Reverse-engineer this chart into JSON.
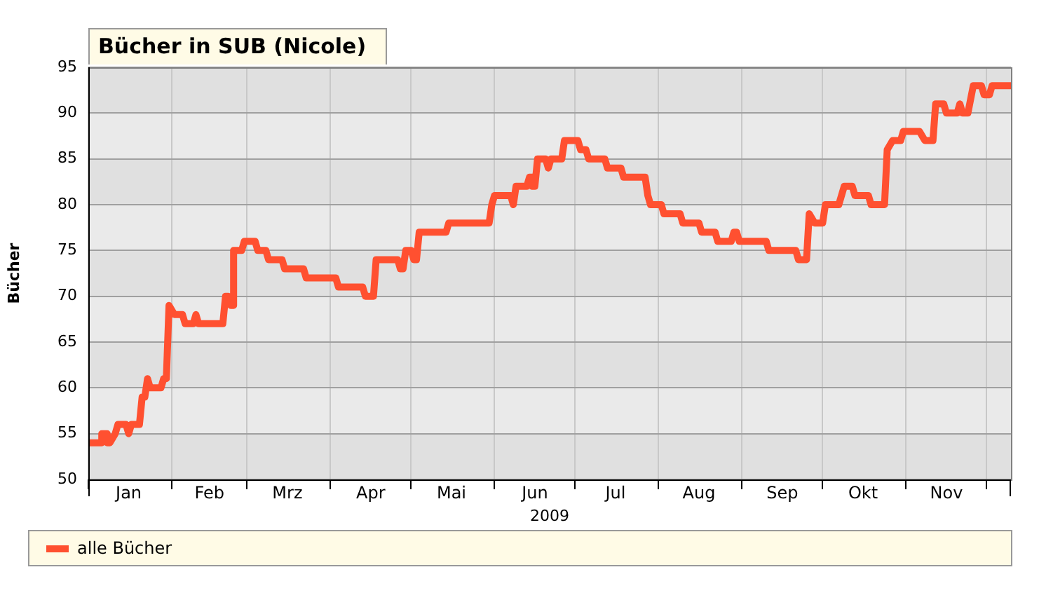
{
  "chart_data": {
    "type": "line",
    "title": "Bücher in SUB (Nicole)",
    "xlabel": "2009",
    "ylabel": "Bücher",
    "xlim": [
      "2009-01-01",
      "2009-12-10"
    ],
    "xticks": [
      {
        "value": "2009-01-01",
        "label": null
      },
      {
        "value": "2009-01-16",
        "label": "Jan"
      },
      {
        "value": "2009-02-01",
        "label": null
      },
      {
        "value": "2009-02-15",
        "label": "Feb"
      },
      {
        "value": "2009-03-01",
        "label": null
      },
      {
        "value": "2009-03-16",
        "label": "Mrz"
      },
      {
        "value": "2009-04-01",
        "label": null
      },
      {
        "value": "2009-04-16",
        "label": "Apr"
      },
      {
        "value": "2009-05-01",
        "label": null
      },
      {
        "value": "2009-05-16",
        "label": "Mai"
      },
      {
        "value": "2009-06-01",
        "label": null
      },
      {
        "value": "2009-06-16",
        "label": "Jun"
      },
      {
        "value": "2009-07-01",
        "label": null
      },
      {
        "value": "2009-07-16",
        "label": "Jul"
      },
      {
        "value": "2009-08-01",
        "label": null
      },
      {
        "value": "2009-08-16",
        "label": "Aug"
      },
      {
        "value": "2009-09-01",
        "label": null
      },
      {
        "value": "2009-09-16",
        "label": "Sep"
      },
      {
        "value": "2009-10-01",
        "label": null
      },
      {
        "value": "2009-10-16",
        "label": "Okt"
      },
      {
        "value": "2009-11-01",
        "label": null
      },
      {
        "value": "2009-11-16",
        "label": "Nov"
      },
      {
        "value": "2009-12-01",
        "label": null
      }
    ],
    "ylim": [
      50,
      95
    ],
    "yticks": [
      50,
      55,
      60,
      65,
      70,
      75,
      80,
      85,
      90,
      95
    ],
    "grid": true,
    "legend": "bottom",
    "marker": "none",
    "line_style": "solid",
    "series": [
      {
        "name": "alle Bücher",
        "color": "#ff5030",
        "x": [
          "2009-01-01",
          "2009-01-06",
          "2009-01-06",
          "2009-01-08",
          "2009-01-08",
          "2009-01-09",
          "2009-01-11",
          "2009-01-12",
          "2009-01-15",
          "2009-01-16",
          "2009-01-17",
          "2009-01-20",
          "2009-01-21",
          "2009-01-22",
          "2009-01-23",
          "2009-01-24",
          "2009-01-28",
          "2009-01-29",
          "2009-01-30",
          "2009-01-31",
          "2009-02-02",
          "2009-02-05",
          "2009-02-06",
          "2009-02-09",
          "2009-02-10",
          "2009-02-11",
          "2009-02-20",
          "2009-02-21",
          "2009-02-22",
          "2009-02-23",
          "2009-02-24",
          "2009-02-24",
          "2009-02-27",
          "2009-02-28",
          "2009-03-04",
          "2009-03-05",
          "2009-03-08",
          "2009-03-09",
          "2009-03-14",
          "2009-03-15",
          "2009-03-22",
          "2009-03-23",
          "2009-04-03",
          "2009-04-04",
          "2009-04-13",
          "2009-04-14",
          "2009-04-17",
          "2009-04-18",
          "2009-04-26",
          "2009-04-27",
          "2009-04-28",
          "2009-04-29",
          "2009-05-01",
          "2009-05-02",
          "2009-05-03",
          "2009-05-04",
          "2009-05-14",
          "2009-05-15",
          "2009-05-30",
          "2009-05-31",
          "2009-06-01",
          "2009-06-07",
          "2009-06-08",
          "2009-06-09",
          "2009-06-13",
          "2009-06-14",
          "2009-06-15",
          "2009-06-15",
          "2009-06-16",
          "2009-06-17",
          "2009-06-20",
          "2009-06-21",
          "2009-06-22",
          "2009-06-26",
          "2009-06-27",
          "2009-07-02",
          "2009-07-03",
          "2009-07-05",
          "2009-07-06",
          "2009-07-12",
          "2009-07-13",
          "2009-07-18",
          "2009-07-19",
          "2009-07-27",
          "2009-07-28",
          "2009-07-29",
          "2009-08-02",
          "2009-08-03",
          "2009-08-09",
          "2009-08-10",
          "2009-08-16",
          "2009-08-17",
          "2009-08-22",
          "2009-08-23",
          "2009-08-28",
          "2009-08-29",
          "2009-08-30",
          "2009-08-31",
          "2009-09-10",
          "2009-09-11",
          "2009-09-21",
          "2009-09-22",
          "2009-09-25",
          "2009-09-26",
          "2009-09-28",
          "2009-10-01",
          "2009-10-02",
          "2009-10-07",
          "2009-10-09",
          "2009-10-12",
          "2009-10-13",
          "2009-10-18",
          "2009-10-19",
          "2009-10-24",
          "2009-10-25",
          "2009-10-27",
          "2009-10-30",
          "2009-10-31",
          "2009-11-06",
          "2009-11-08",
          "2009-11-11",
          "2009-11-12",
          "2009-11-15",
          "2009-11-16",
          "2009-11-20",
          "2009-11-21",
          "2009-11-22",
          "2009-11-24",
          "2009-11-26",
          "2009-11-29",
          "2009-11-30",
          "2009-12-02",
          "2009-12-03",
          "2009-12-10"
        ],
        "values": [
          54,
          54,
          55,
          55,
          54,
          54,
          55,
          56,
          56,
          55,
          56,
          56,
          59,
          59,
          61,
          60,
          60,
          61,
          61,
          69,
          68,
          68,
          67,
          67,
          68,
          67,
          67,
          70,
          70,
          69,
          69,
          75,
          75,
          76,
          76,
          75,
          75,
          74,
          74,
          73,
          73,
          72,
          72,
          71,
          71,
          70,
          70,
          74,
          74,
          73,
          73,
          75,
          75,
          74,
          74,
          77,
          77,
          78,
          78,
          80,
          81,
          81,
          80,
          82,
          82,
          83,
          83,
          82,
          82,
          85,
          85,
          84,
          85,
          85,
          87,
          87,
          86,
          86,
          85,
          85,
          84,
          84,
          83,
          83,
          81,
          80,
          80,
          79,
          79,
          78,
          78,
          77,
          77,
          76,
          76,
          77,
          77,
          76,
          76,
          75,
          75,
          74,
          74,
          79,
          78,
          78,
          80,
          80,
          82,
          82,
          81,
          81,
          80,
          80,
          86,
          87,
          87,
          88,
          88,
          87,
          87,
          91,
          91,
          90,
          90,
          91,
          90,
          90,
          93,
          93,
          92,
          92,
          93,
          93
        ]
      }
    ]
  }
}
